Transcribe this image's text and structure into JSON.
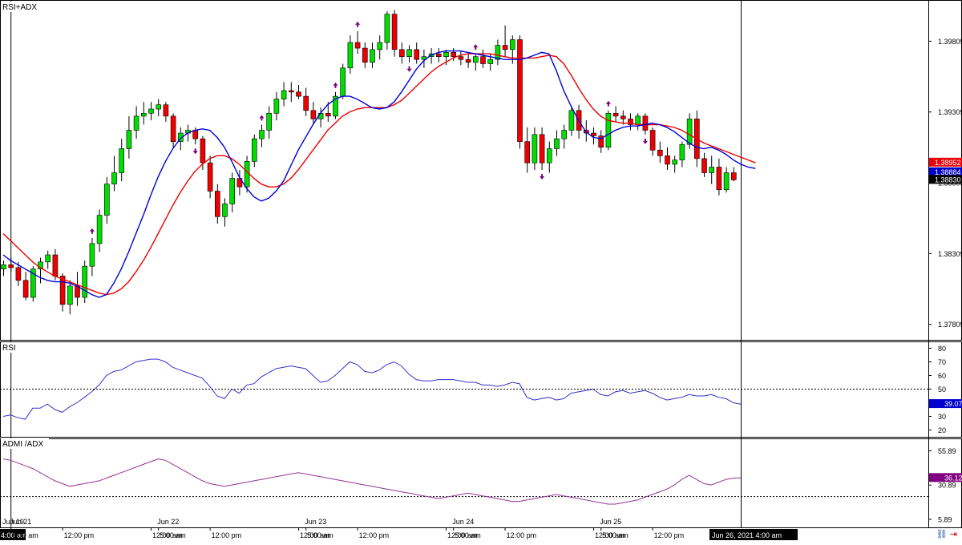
{
  "main_panel": {
    "label": "RSI+ADX"
  },
  "rsi_panel": {
    "label": "RSI"
  },
  "adx_panel": {
    "label": "ADMI /ADX"
  },
  "time_labels": [
    {
      "t": 0,
      "text": "Jun 19"
    },
    {
      "t": 0,
      "text": "4:00 am"
    },
    {
      "t": 1,
      "text": "Jun 21"
    },
    {
      "t": 1,
      "text": "5:00 am"
    },
    {
      "t": 8,
      "text": "12:00 pm"
    },
    {
      "t": 20,
      "text": "12:00 am"
    },
    {
      "t": 21,
      "text": "5:00 am"
    },
    {
      "t": 21,
      "text": "Jun 22"
    },
    {
      "t": 28,
      "text": "12:00 pm"
    },
    {
      "t": 40,
      "text": "12:00 am"
    },
    {
      "t": 41,
      "text": "5:00 am"
    },
    {
      "t": 41,
      "text": "Jun 23"
    },
    {
      "t": 48,
      "text": "12:00 pm"
    },
    {
      "t": 60,
      "text": "12:00 am"
    },
    {
      "t": 61,
      "text": "5:00 am"
    },
    {
      "t": 61,
      "text": "Jun 24"
    },
    {
      "t": 68,
      "text": "12:00 pm"
    },
    {
      "t": 80,
      "text": "12:00 am"
    },
    {
      "t": 81,
      "text": "5:00 am"
    },
    {
      "t": 81,
      "text": "Jun 25"
    },
    {
      "t": 88,
      "text": "12:00 pm"
    },
    {
      "t": 100,
      "text": "Jun 26, 2021 4:00 am"
    }
  ],
  "chart_data": [
    {
      "type": "candlestick",
      "title": "RSI+ADX",
      "ylim": [
        1.377,
        1.401
      ],
      "yticks": [
        "1.39809",
        "1.39309",
        "1.38809",
        "1.38309",
        "1.37809"
      ],
      "ytick_values": [
        1.39809,
        1.39309,
        1.38809,
        1.38309,
        1.37809
      ],
      "price_tags": [
        {
          "text": "1.38952",
          "value": 1.38952,
          "color": "#e8000b"
        },
        {
          "text": "1.38884",
          "value": 1.38884,
          "color": "#0000cc"
        },
        {
          "text": "1.38830",
          "value": 1.3883,
          "color": "#000000"
        }
      ],
      "colors": {
        "up": "#00dd00",
        "down": "#ee0000",
        "ma_fast": "#0000dd",
        "ma_slow": "#ee0000",
        "arrow": "#800080"
      },
      "candles": [
        [
          1.382,
          1.3826,
          1.3815,
          1.3823
        ],
        [
          1.3823,
          1.3828,
          1.3818,
          1.3821
        ],
        [
          1.3821,
          1.3825,
          1.3808,
          1.3812
        ],
        [
          1.3812,
          1.3818,
          1.3798,
          1.38
        ],
        [
          1.38,
          1.3822,
          1.3797,
          1.382
        ],
        [
          1.382,
          1.3828,
          1.381,
          1.3825
        ],
        [
          1.3825,
          1.3833,
          1.382,
          1.383
        ],
        [
          1.383,
          1.3834,
          1.3812,
          1.3815
        ],
        [
          1.3815,
          1.3817,
          1.379,
          1.3795
        ],
        [
          1.3795,
          1.3812,
          1.3788,
          1.3808
        ],
        [
          1.3808,
          1.3818,
          1.3794,
          1.38
        ],
        [
          1.38,
          1.3826,
          1.3796,
          1.3822
        ],
        [
          1.3822,
          1.3842,
          1.3815,
          1.3838
        ],
        [
          1.3838,
          1.3862,
          1.3832,
          1.3858
        ],
        [
          1.3858,
          1.3885,
          1.3852,
          1.388
        ],
        [
          1.388,
          1.39,
          1.3875,
          1.3888
        ],
        [
          1.3888,
          1.3912,
          1.3882,
          1.3905
        ],
        [
          1.3905,
          1.3928,
          1.3898,
          1.3918
        ],
        [
          1.3918,
          1.3935,
          1.3912,
          1.3928
        ],
        [
          1.3928,
          1.3938,
          1.3922,
          1.393
        ],
        [
          1.393,
          1.3938,
          1.3925,
          1.3933
        ],
        [
          1.3933,
          1.394,
          1.3928,
          1.3936
        ],
        [
          1.3936,
          1.3938,
          1.3924,
          1.3928
        ],
        [
          1.3928,
          1.393,
          1.3905,
          1.391
        ],
        [
          1.391,
          1.392,
          1.3904,
          1.3916
        ],
        [
          1.3916,
          1.3922,
          1.391,
          1.3918
        ],
        [
          1.3918,
          1.392,
          1.3908,
          1.3912
        ],
        [
          1.3912,
          1.3914,
          1.389,
          1.3895
        ],
        [
          1.3895,
          1.39,
          1.387,
          1.3875
        ],
        [
          1.3875,
          1.388,
          1.3852,
          1.3857
        ],
        [
          1.3857,
          1.387,
          1.385,
          1.3866
        ],
        [
          1.3866,
          1.3888,
          1.386,
          1.3884
        ],
        [
          1.3884,
          1.389,
          1.3872,
          1.3878
        ],
        [
          1.3878,
          1.39,
          1.3874,
          1.3896
        ],
        [
          1.3896,
          1.3915,
          1.3892,
          1.3912
        ],
        [
          1.3912,
          1.3922,
          1.3906,
          1.3918
        ],
        [
          1.3918,
          1.3935,
          1.3912,
          1.393
        ],
        [
          1.393,
          1.3945,
          1.3925,
          1.394
        ],
        [
          1.394,
          1.3952,
          1.3935,
          1.3946
        ],
        [
          1.3946,
          1.3952,
          1.3938,
          1.3945
        ],
        [
          1.3945,
          1.395,
          1.394,
          1.3942
        ],
        [
          1.3942,
          1.3948,
          1.3928,
          1.3932
        ],
        [
          1.3932,
          1.3938,
          1.3922,
          1.3926
        ],
        [
          1.3926,
          1.3934,
          1.392,
          1.393
        ],
        [
          1.393,
          1.3938,
          1.3924,
          1.3928
        ],
        [
          1.3928,
          1.3945,
          1.3926,
          1.3942
        ],
        [
          1.3942,
          1.3965,
          1.394,
          1.3962
        ],
        [
          1.3962,
          1.3985,
          1.3958,
          1.398
        ],
        [
          1.398,
          1.3988,
          1.3972,
          1.3976
        ],
        [
          1.3976,
          1.398,
          1.3962,
          1.3966
        ],
        [
          1.3966,
          1.398,
          1.3962,
          1.3975
        ],
        [
          1.3975,
          1.3985,
          1.3968,
          1.398
        ],
        [
          1.398,
          1.4002,
          1.3975,
          1.4
        ],
        [
          1.4,
          1.4003,
          1.397,
          1.3975
        ],
        [
          1.3975,
          1.398,
          1.3965,
          1.397
        ],
        [
          1.397,
          1.3978,
          1.3966,
          1.3975
        ],
        [
          1.3975,
          1.398,
          1.3965,
          1.3968
        ],
        [
          1.3968,
          1.3975,
          1.3962,
          1.397
        ],
        [
          1.397,
          1.3976,
          1.3965,
          1.3972
        ],
        [
          1.3972,
          1.3976,
          1.3966,
          1.397
        ],
        [
          1.397,
          1.3975,
          1.3964,
          1.3973
        ],
        [
          1.3973,
          1.3976,
          1.3967,
          1.397
        ],
        [
          1.397,
          1.3974,
          1.3964,
          1.3968
        ],
        [
          1.3968,
          1.3972,
          1.3962,
          1.3966
        ],
        [
          1.3966,
          1.3972,
          1.396,
          1.397
        ],
        [
          1.397,
          1.3975,
          1.3962,
          1.3965
        ],
        [
          1.3965,
          1.3972,
          1.396,
          1.3968
        ],
        [
          1.3968,
          1.3982,
          1.3964,
          1.3978
        ],
        [
          1.3978,
          1.3992,
          1.397,
          1.3975
        ],
        [
          1.3975,
          1.3985,
          1.3965,
          1.3982
        ],
        [
          1.3982,
          1.3985,
          1.3905,
          1.391
        ],
        [
          1.391,
          1.392,
          1.3888,
          1.3895
        ],
        [
          1.3895,
          1.392,
          1.389,
          1.3915
        ],
        [
          1.3915,
          1.392,
          1.389,
          1.3895
        ],
        [
          1.3895,
          1.391,
          1.3888,
          1.3905
        ],
        [
          1.3905,
          1.3918,
          1.39,
          1.3912
        ],
        [
          1.3912,
          1.3922,
          1.3905,
          1.3918
        ],
        [
          1.3918,
          1.3935,
          1.3914,
          1.3932
        ],
        [
          1.3932,
          1.3936,
          1.3912,
          1.3918
        ],
        [
          1.3918,
          1.3925,
          1.391,
          1.3916
        ],
        [
          1.3916,
          1.392,
          1.3908,
          1.3914
        ],
        [
          1.3914,
          1.3918,
          1.3902,
          1.3906
        ],
        [
          1.3906,
          1.3932,
          1.3904,
          1.393
        ],
        [
          1.393,
          1.3935,
          1.3924,
          1.3928
        ],
        [
          1.3928,
          1.3932,
          1.3922,
          1.3926
        ],
        [
          1.3926,
          1.393,
          1.3918,
          1.3922
        ],
        [
          1.3922,
          1.393,
          1.3918,
          1.3928
        ],
        [
          1.3928,
          1.393,
          1.3915,
          1.3918
        ],
        [
          1.3918,
          1.392,
          1.39,
          1.3904
        ],
        [
          1.3904,
          1.391,
          1.3895,
          1.39
        ],
        [
          1.39,
          1.3906,
          1.389,
          1.3894
        ],
        [
          1.3894,
          1.39,
          1.3888,
          1.3897
        ],
        [
          1.3897,
          1.391,
          1.3892,
          1.3908
        ],
        [
          1.3908,
          1.393,
          1.3905,
          1.3926
        ],
        [
          1.3926,
          1.3932,
          1.3892,
          1.3898
        ],
        [
          1.3898,
          1.3902,
          1.3885,
          1.3888
        ],
        [
          1.3888,
          1.39,
          1.388,
          1.3892
        ],
        [
          1.3892,
          1.3898,
          1.3872,
          1.3876
        ],
        [
          1.3876,
          1.3892,
          1.3874,
          1.3888
        ],
        [
          1.3888,
          1.3892,
          1.3882,
          1.3883
        ]
      ],
      "ma_fast": [
        1.383,
        1.3826,
        1.3823,
        1.382,
        1.3817,
        1.3814,
        1.3812,
        1.3811,
        1.3811,
        1.381,
        1.3808,
        1.3805,
        1.3802,
        1.38,
        1.3802,
        1.381,
        1.382,
        1.3832,
        1.3845,
        1.3858,
        1.3872,
        1.3885,
        1.3896,
        1.3905,
        1.3912,
        1.3916,
        1.3918,
        1.3919,
        1.3918,
        1.3913,
        1.3906,
        1.3896,
        1.3885,
        1.3877,
        1.3871,
        1.3868,
        1.387,
        1.3875,
        1.3882,
        1.3893,
        1.3904,
        1.3913,
        1.3922,
        1.393,
        1.3936,
        1.394,
        1.3942,
        1.3942,
        1.394,
        1.3937,
        1.3934,
        1.3933,
        1.3934,
        1.3938,
        1.3945,
        1.3953,
        1.3961,
        1.3967,
        1.3971,
        1.3973,
        1.3974,
        1.3974,
        1.3974,
        1.3973,
        1.3972,
        1.3971,
        1.397,
        1.3969,
        1.3968,
        1.3968,
        1.3968,
        1.3969,
        1.3971,
        1.3973,
        1.3972,
        1.396,
        1.3946,
        1.3935,
        1.3925,
        1.3917,
        1.3913,
        1.3912,
        1.3915,
        1.3918,
        1.392,
        1.3921,
        1.3921,
        1.3922,
        1.3923,
        1.3922,
        1.392,
        1.3917,
        1.3913,
        1.3909,
        1.3906,
        1.3905,
        1.3906,
        1.3904,
        1.3901,
        1.3897,
        1.3894,
        1.3892,
        1.3891
      ],
      "ma_slow": [
        1.3845,
        1.384,
        1.3835,
        1.383,
        1.3825,
        1.3821,
        1.3818,
        1.3815,
        1.3813,
        1.3811,
        1.3809,
        1.3807,
        1.3805,
        1.3803,
        1.3802,
        1.3803,
        1.3806,
        1.3811,
        1.3818,
        1.3826,
        1.3835,
        1.3845,
        1.3855,
        1.3865,
        1.3874,
        1.3882,
        1.3889,
        1.3894,
        1.3898,
        1.39,
        1.39,
        1.3898,
        1.3894,
        1.3889,
        1.3884,
        1.388,
        1.3878,
        1.3878,
        1.388,
        1.3884,
        1.389,
        1.3897,
        1.3904,
        1.3911,
        1.3918,
        1.3923,
        1.3928,
        1.3931,
        1.3933,
        1.3934,
        1.3934,
        1.3934,
        1.3934,
        1.3936,
        1.3939,
        1.3944,
        1.3949,
        1.3954,
        1.3959,
        1.3963,
        1.3966,
        1.3969,
        1.3971,
        1.3972,
        1.3972,
        1.3972,
        1.3972,
        1.3971,
        1.397,
        1.3969,
        1.3969,
        1.3969,
        1.3969,
        1.397,
        1.3971,
        1.397,
        1.3965,
        1.3957,
        1.3948,
        1.394,
        1.3933,
        1.3928,
        1.3925,
        1.3924,
        1.3923,
        1.3923,
        1.3922,
        1.3922,
        1.3922,
        1.3922,
        1.3921,
        1.392,
        1.3918,
        1.3915,
        1.3912,
        1.3909,
        1.3907,
        1.3905,
        1.3903,
        1.3901,
        1.3899,
        1.3897,
        1.3895
      ],
      "arrows": [
        {
          "t": 12,
          "dir": "up"
        },
        {
          "t": 26,
          "dir": "down"
        },
        {
          "t": 35,
          "dir": "up"
        },
        {
          "t": 45,
          "dir": "up"
        },
        {
          "t": 48,
          "dir": "up"
        },
        {
          "t": 55,
          "dir": "down"
        },
        {
          "t": 64,
          "dir": "up"
        },
        {
          "t": 73,
          "dir": "down"
        },
        {
          "t": 82,
          "dir": "up"
        },
        {
          "t": 87,
          "dir": "down"
        }
      ]
    },
    {
      "type": "line",
      "title": "RSI",
      "ylim": [
        15,
        85
      ],
      "yticks": [
        "80",
        "70",
        "60",
        "50",
        "40",
        "30",
        "20"
      ],
      "ytick_values": [
        80,
        70,
        60,
        50,
        40,
        30,
        20
      ],
      "level": 50,
      "current": {
        "text": "39.07",
        "value": 39.07,
        "color": "#0000cc"
      },
      "color": "#3333cc",
      "values": [
        30,
        31,
        29,
        28,
        36,
        36,
        39,
        35,
        33,
        37,
        40,
        44,
        48,
        53,
        60,
        63,
        64,
        67,
        70,
        71,
        72,
        72,
        70,
        66,
        64,
        62,
        60,
        58,
        52,
        45,
        43,
        50,
        47,
        53,
        54,
        59,
        62,
        65,
        66,
        67,
        66,
        65,
        60,
        55,
        56,
        60,
        65,
        70,
        68,
        63,
        62,
        64,
        68,
        70,
        67,
        61,
        57,
        56,
        56,
        57,
        57,
        57,
        56,
        55,
        55,
        53,
        53,
        52,
        53,
        55,
        54,
        44,
        42,
        43,
        44,
        42,
        43,
        47,
        48,
        49,
        50,
        46,
        45,
        48,
        49,
        47,
        48,
        49,
        47,
        44,
        42,
        43,
        44,
        46,
        45,
        45,
        46,
        44,
        43,
        40,
        39
      ]
    },
    {
      "type": "line",
      "title": "ADMI /ADX",
      "ylim": [
        0,
        65
      ],
      "yticks": [
        "55.89",
        "30.89",
        "5.89"
      ],
      "ytick_values": [
        55.89,
        30.89,
        5.89
      ],
      "level": 22.5,
      "current": {
        "text": "36.12",
        "value": 36.12,
        "color": "#800080"
      },
      "color": "#993399",
      "values": [
        50,
        49,
        47,
        45,
        43,
        40,
        37,
        34,
        32,
        30,
        31,
        32,
        33,
        34,
        36,
        38,
        40,
        42,
        44,
        46,
        48,
        50,
        49,
        46,
        43,
        40,
        37,
        34,
        32,
        31,
        30,
        31,
        32,
        33,
        34,
        35,
        36,
        37,
        38,
        39,
        40,
        39,
        38,
        37,
        36,
        35,
        34,
        33,
        32,
        31,
        30,
        29,
        28,
        27,
        26,
        25,
        24,
        23,
        22,
        21,
        22,
        23,
        24,
        25,
        24,
        23,
        22,
        21,
        20,
        19,
        19,
        20,
        21,
        22,
        23,
        24,
        23,
        22,
        21,
        20,
        19,
        18,
        17,
        17,
        18,
        19,
        20,
        22,
        24,
        26,
        28,
        31,
        35,
        38,
        35,
        32,
        31,
        33,
        35,
        36,
        36.12
      ]
    }
  ]
}
